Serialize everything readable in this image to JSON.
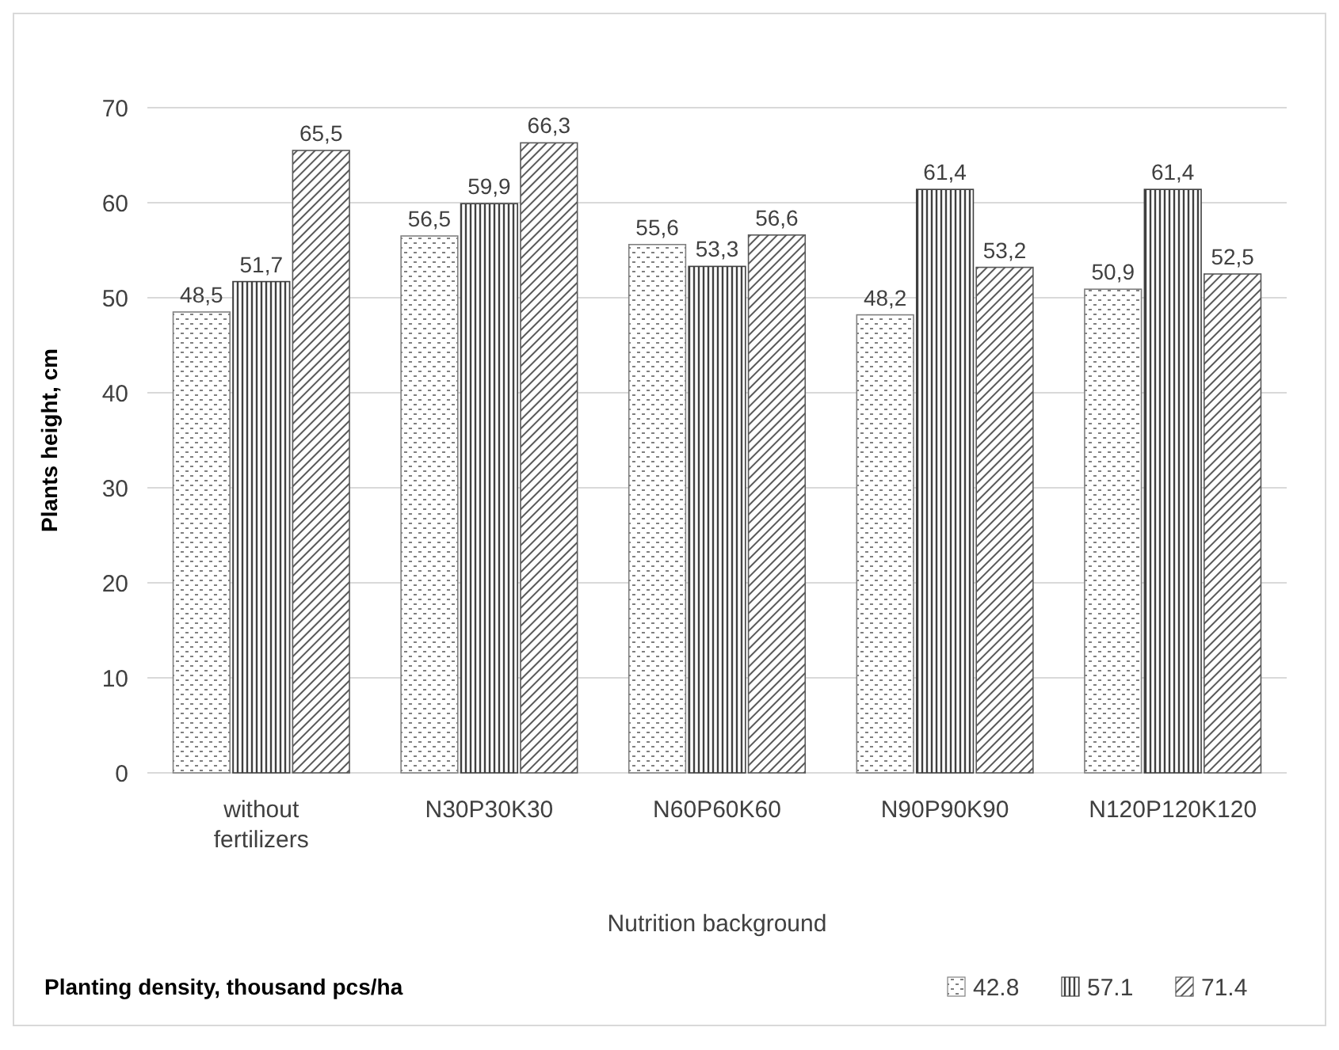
{
  "chart_data": {
    "type": "bar",
    "xlabel": "Nutrition background",
    "ylabel": "Plants height, cm",
    "legend_title": "Planting density, thousand pcs/ha",
    "categories": [
      "without fertilizers",
      "N30P30K30",
      "N60P60K60",
      "N90P90K90",
      "N120P120K120"
    ],
    "series": [
      {
        "name": "42.8",
        "color": "#808080",
        "values": [
          48.5,
          56.5,
          55.6,
          48.2,
          50.9
        ],
        "value_labels": [
          "48,5",
          "56,5",
          "55,6",
          "48,2",
          "50,9"
        ]
      },
      {
        "name": "57.1",
        "color": "#404040",
        "values": [
          51.7,
          59.9,
          53.3,
          61.4,
          61.4
        ],
        "value_labels": [
          "51,7",
          "59,9",
          "53,3",
          "61,4",
          "61,4"
        ]
      },
      {
        "name": "71.4",
        "color": "#595959",
        "values": [
          65.5,
          66.3,
          56.6,
          53.2,
          52.5
        ],
        "value_labels": [
          "65,5",
          "66,3",
          "56,6",
          "53,2",
          "52,5"
        ]
      }
    ],
    "ylim": [
      0,
      70
    ],
    "yticks": [
      0,
      10,
      20,
      30,
      40,
      50,
      60,
      70
    ],
    "grid": "y",
    "legend": "bottom"
  }
}
